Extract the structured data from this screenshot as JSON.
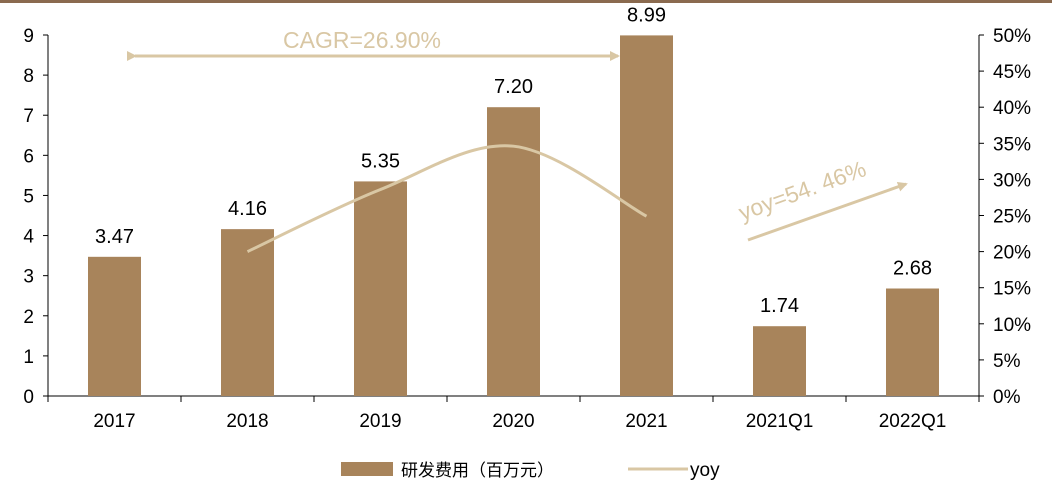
{
  "chart_data": {
    "type": "bar",
    "categories": [
      "2017",
      "2018",
      "2019",
      "2020",
      "2021",
      "2021Q1",
      "2022Q1"
    ],
    "series": [
      {
        "name": "研发费用（百万元）",
        "type": "bar",
        "axis": "left",
        "values": [
          3.47,
          4.16,
          5.35,
          7.2,
          8.99,
          1.74,
          2.68
        ],
        "labels": [
          "3.47",
          "4.16",
          "5.35",
          "7.20",
          "8.99",
          "1.74",
          "2.68"
        ]
      },
      {
        "name": "yoy",
        "type": "line",
        "axis": "right",
        "x": [
          "2018",
          "2019",
          "2020",
          "2021"
        ],
        "values": [
          20.0,
          28.6,
          34.6,
          24.9
        ]
      }
    ],
    "y_left": {
      "min": 0,
      "max": 9,
      "ticks": [
        "0",
        "1",
        "2",
        "3",
        "4",
        "5",
        "6",
        "7",
        "8",
        "9"
      ]
    },
    "y_right": {
      "min": 0,
      "max": 50,
      "ticks": [
        "0%",
        "5%",
        "10%",
        "15%",
        "20%",
        "25%",
        "30%",
        "35%",
        "40%",
        "45%",
        "50%"
      ]
    },
    "annotations": {
      "cagr": "CAGR=26.90%",
      "yoy": "yoy=54. 46%"
    },
    "legend_position": "bottom",
    "grid": false,
    "colors": {
      "bar": "#a8845b",
      "line": "#d9c7a4",
      "annotation": "#d9c7a4",
      "top_rule": "#8a6a4f"
    }
  }
}
